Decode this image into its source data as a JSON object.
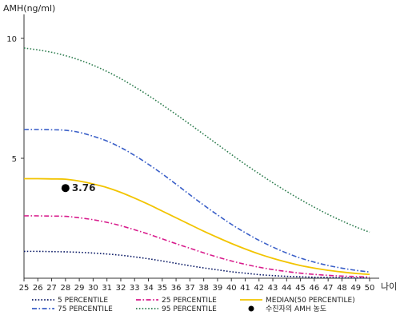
{
  "chart_data": {
    "type": "line",
    "title": "",
    "ylabel": "AMH(ng/ml)",
    "xlabel": "나이",
    "ylim": [
      0,
      11
    ],
    "xlim": [
      25,
      50
    ],
    "x": [
      25,
      26,
      27,
      28,
      29,
      30,
      31,
      32,
      33,
      34,
      35,
      36,
      37,
      38,
      39,
      40,
      41,
      42,
      43,
      44,
      45,
      46,
      47,
      48,
      49,
      50
    ],
    "y_ticks": [
      5,
      10
    ],
    "grid": false,
    "legend_position": "bottom",
    "series": [
      {
        "name": "5 PERCENTILE",
        "color": "#0b1a66",
        "dash": "dotted",
        "values": [
          1.12,
          1.12,
          1.11,
          1.1,
          1.08,
          1.05,
          1.01,
          0.96,
          0.89,
          0.81,
          0.72,
          0.62,
          0.52,
          0.43,
          0.35,
          0.27,
          0.21,
          0.15,
          0.11,
          0.08,
          0.06,
          0.04,
          0.03,
          0.02,
          0.01,
          0.01
        ]
      },
      {
        "name": "75 PERCENTILE",
        "color": "#3a5fc8",
        "dash": "dashdot",
        "values": [
          6.2,
          6.2,
          6.19,
          6.17,
          6.08,
          5.92,
          5.72,
          5.45,
          5.12,
          4.75,
          4.35,
          3.92,
          3.48,
          3.05,
          2.64,
          2.25,
          1.9,
          1.58,
          1.3,
          1.05,
          0.84,
          0.67,
          0.53,
          0.42,
          0.33,
          0.26
        ]
      },
      {
        "name": "25 PERCENTILE",
        "color": "#d81b8c",
        "dash": "dashdot",
        "values": [
          2.6,
          2.6,
          2.59,
          2.58,
          2.52,
          2.44,
          2.33,
          2.19,
          2.02,
          1.84,
          1.64,
          1.44,
          1.25,
          1.06,
          0.88,
          0.72,
          0.58,
          0.46,
          0.36,
          0.28,
          0.21,
          0.16,
          0.12,
          0.09,
          0.07,
          0.05
        ]
      },
      {
        "name": "95 PERCENTILE",
        "color": "#2e7d4f",
        "dash": "dotted",
        "values": [
          9.6,
          9.52,
          9.42,
          9.28,
          9.1,
          8.88,
          8.62,
          8.32,
          7.98,
          7.62,
          7.23,
          6.83,
          6.42,
          6.0,
          5.58,
          5.16,
          4.75,
          4.36,
          3.98,
          3.62,
          3.28,
          2.96,
          2.66,
          2.39,
          2.14,
          1.92
        ]
      },
      {
        "name": "MEDIAN(50 PERCENTILE)",
        "color": "#f2c400",
        "dash": "solid",
        "values": [
          4.15,
          4.15,
          4.14,
          4.13,
          4.05,
          3.93,
          3.78,
          3.58,
          3.34,
          3.08,
          2.8,
          2.52,
          2.24,
          1.96,
          1.7,
          1.45,
          1.22,
          1.01,
          0.83,
          0.67,
          0.53,
          0.42,
          0.33,
          0.26,
          0.2,
          0.16
        ]
      }
    ],
    "marker": {
      "name": "수진자의 AMH 농도",
      "x": 28,
      "y": 3.76,
      "label": "3.76",
      "color": "#000000"
    }
  }
}
